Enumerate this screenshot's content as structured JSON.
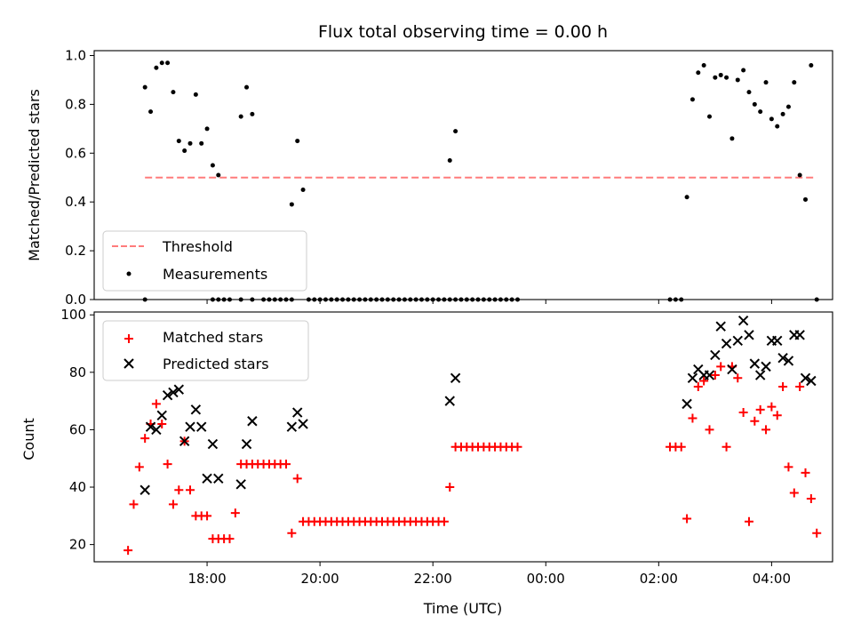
{
  "chart_data": [
    {
      "type": "scatter",
      "title": "Flux total observing time = 0.00 h",
      "xlabel": "",
      "ylabel": "Matched/Predicted stars",
      "ylim": [
        0,
        1.02
      ],
      "yticks": [
        0.0,
        0.2,
        0.4,
        0.6,
        0.8,
        1.0
      ],
      "ytick_labels": [
        "0.0",
        "0.2",
        "0.4",
        "0.6",
        "0.8",
        "1.0"
      ],
      "grid": false,
      "legend": {
        "position": "lower-left",
        "entries": [
          {
            "name": "Threshold",
            "style": "dashed-line",
            "color": "#ff7b7b"
          },
          {
            "name": "Measurements",
            "style": "dot",
            "color": "#000000"
          }
        ]
      },
      "threshold": {
        "name": "Threshold",
        "y": 0.5,
        "x_start": 16.9,
        "x_end": 28.8,
        "color": "#ff7b7b"
      },
      "series": [
        {
          "name": "Measurements",
          "color": "#000000",
          "x": [
            16.9,
            17.0,
            17.1,
            17.2,
            17.3,
            17.4,
            17.5,
            17.6,
            17.7,
            17.8,
            17.9,
            18.0,
            18.1,
            18.2,
            18.6,
            18.7,
            18.8,
            19.5,
            19.6,
            19.7,
            22.3,
            22.4,
            26.5,
            26.6,
            26.7,
            26.8,
            26.9,
            27.0,
            27.1,
            27.2,
            27.3,
            27.4,
            27.5,
            27.6,
            27.7,
            27.8,
            27.9,
            28.0,
            28.1,
            28.2,
            28.3,
            28.4,
            28.5,
            28.6,
            28.7,
            16.9,
            18.1,
            18.2,
            18.3,
            18.4,
            18.6,
            18.8,
            19.0,
            19.1,
            19.2,
            19.3,
            19.4,
            19.5,
            19.8,
            19.9,
            20.0,
            20.1,
            20.2,
            20.3,
            20.4,
            20.5,
            20.6,
            20.7,
            20.8,
            20.9,
            21.0,
            21.1,
            21.2,
            21.3,
            21.4,
            21.5,
            21.6,
            21.7,
            21.8,
            21.9,
            22.0,
            22.1,
            22.2,
            22.3,
            22.4,
            22.5,
            22.6,
            22.7,
            22.8,
            22.9,
            23.0,
            23.1,
            23.2,
            23.3,
            23.4,
            23.5,
            26.2,
            26.3,
            26.4,
            28.8
          ],
          "y": [
            0.87,
            0.77,
            0.95,
            0.97,
            0.97,
            0.85,
            0.65,
            0.61,
            0.64,
            0.84,
            0.64,
            0.7,
            0.55,
            0.51,
            0.75,
            0.87,
            0.76,
            0.39,
            0.65,
            0.45,
            0.57,
            0.69,
            0.42,
            0.82,
            0.93,
            0.96,
            0.75,
            0.91,
            0.92,
            0.91,
            0.66,
            0.9,
            0.94,
            0.85,
            0.8,
            0.77,
            0.89,
            0.74,
            0.71,
            0.76,
            0.79,
            0.89,
            0.51,
            0.41,
            0.96,
            0,
            0,
            0,
            0,
            0,
            0,
            0,
            0,
            0,
            0,
            0,
            0,
            0,
            0,
            0,
            0,
            0,
            0,
            0,
            0,
            0,
            0,
            0,
            0,
            0,
            0,
            0,
            0,
            0,
            0,
            0,
            0,
            0,
            0,
            0,
            0,
            0,
            0,
            0,
            0,
            0,
            0,
            0,
            0,
            0,
            0,
            0,
            0,
            0,
            0,
            0,
            0,
            0,
            0,
            0
          ]
        }
      ]
    },
    {
      "type": "scatter",
      "title": "",
      "xlabel": "Time (UTC)",
      "ylabel": "Count",
      "ylim": [
        14,
        101
      ],
      "yticks": [
        20,
        40,
        60,
        80,
        100
      ],
      "ytick_labels": [
        "20",
        "40",
        "60",
        "80",
        "100"
      ],
      "xlim": [
        16.0,
        29.08
      ],
      "xticks": [
        18,
        20,
        22,
        24,
        26,
        28
      ],
      "xtick_labels": [
        "18:00",
        "20:00",
        "22:00",
        "00:00",
        "02:00",
        "04:00"
      ],
      "grid": false,
      "legend": {
        "position": "upper-left",
        "entries": [
          {
            "name": "Matched stars",
            "style": "plus",
            "color": "#ff0000"
          },
          {
            "name": "Predicted stars",
            "style": "x",
            "color": "#000000"
          }
        ]
      },
      "series": [
        {
          "name": "Matched stars",
          "color": "#ff0000",
          "x": [
            16.6,
            16.7,
            16.8,
            16.9,
            17.0,
            17.1,
            17.2,
            17.3,
            17.4,
            17.5,
            17.6,
            17.7,
            17.8,
            17.9,
            18.0,
            18.1,
            18.2,
            18.3,
            18.4,
            18.5,
            18.6,
            18.7,
            18.8,
            18.9,
            19.0,
            19.1,
            19.2,
            19.3,
            19.4,
            19.5,
            19.6,
            19.7,
            19.8,
            19.9,
            20.0,
            20.1,
            20.2,
            20.3,
            20.4,
            20.5,
            20.6,
            20.7,
            20.8,
            20.9,
            21.0,
            21.1,
            21.2,
            21.3,
            21.4,
            21.5,
            21.6,
            21.7,
            21.8,
            21.9,
            22.0,
            22.1,
            22.2,
            22.3,
            22.4,
            22.5,
            22.6,
            22.7,
            22.8,
            22.9,
            23.0,
            23.1,
            23.2,
            23.3,
            23.4,
            23.5,
            26.2,
            26.3,
            26.4,
            26.5,
            26.6,
            26.7,
            26.8,
            26.9,
            27.0,
            27.1,
            27.2,
            27.3,
            27.4,
            27.5,
            27.6,
            27.7,
            27.8,
            27.9,
            28.0,
            28.1,
            28.2,
            28.3,
            28.4,
            28.5,
            28.6,
            28.7,
            28.8
          ],
          "y": [
            18,
            34,
            47,
            57,
            62,
            69,
            62,
            48,
            34,
            39,
            56,
            39,
            30,
            30,
            30,
            22,
            22,
            22,
            22,
            31,
            48,
            48,
            48,
            48,
            48,
            48,
            48,
            48,
            48,
            24,
            43,
            28,
            28,
            28,
            28,
            28,
            28,
            28,
            28,
            28,
            28,
            28,
            28,
            28,
            28,
            28,
            28,
            28,
            28,
            28,
            28,
            28,
            28,
            28,
            28,
            28,
            28,
            40,
            54,
            54,
            54,
            54,
            54,
            54,
            54,
            54,
            54,
            54,
            54,
            54,
            54,
            54,
            54,
            29,
            64,
            75,
            77,
            60,
            79,
            82,
            54,
            82,
            78,
            66,
            28,
            63,
            67,
            60,
            68,
            65,
            75,
            47,
            38,
            75,
            45,
            36,
            24
          ]
        },
        {
          "name": "Predicted stars",
          "color": "#000000",
          "x": [
            16.9,
            17.0,
            17.1,
            17.2,
            17.3,
            17.4,
            17.5,
            17.6,
            17.7,
            17.8,
            17.9,
            18.0,
            18.1,
            18.2,
            18.6,
            18.7,
            18.8,
            19.5,
            19.6,
            19.7,
            22.3,
            22.4,
            26.5,
            26.6,
            26.7,
            26.8,
            26.9,
            27.0,
            27.1,
            27.2,
            27.3,
            27.4,
            27.5,
            27.6,
            27.7,
            27.8,
            27.9,
            28.0,
            28.1,
            28.2,
            28.3,
            28.4,
            28.5,
            28.6,
            28.7
          ],
          "y": [
            39,
            61,
            60,
            65,
            72,
            73,
            74,
            56,
            61,
            67,
            61,
            43,
            55,
            43,
            41,
            55,
            63,
            61,
            66,
            62,
            70,
            78,
            69,
            78,
            81,
            79,
            79,
            86,
            96,
            90,
            81,
            91,
            98,
            93,
            83,
            79,
            82,
            91,
            91,
            85,
            84,
            93,
            93,
            78,
            77
          ]
        }
      ]
    }
  ]
}
